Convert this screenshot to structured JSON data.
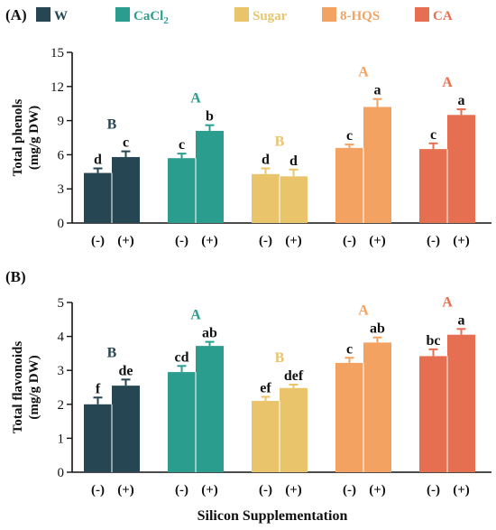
{
  "figure": {
    "legend": [
      {
        "name": "W",
        "color": "#264653"
      },
      {
        "name": "CaCl",
        "sub": "2",
        "color": "#2A9D8F"
      },
      {
        "name": "Sugar",
        "color": "#E9C46A"
      },
      {
        "name": "8-HQS",
        "color": "#F4A261"
      },
      {
        "name": "CA",
        "color": "#E76F51"
      }
    ],
    "xlabel": "Silicon Supplementation"
  },
  "chart_data": [
    {
      "type": "bar",
      "panel_label": "(A)",
      "ylabel": "Total phenols",
      "ylabel_unit": "(mg/g DW)",
      "ylim": [
        0,
        15
      ],
      "yticks": [
        "0",
        "3",
        "6",
        "9",
        "12",
        "15"
      ],
      "grid": false,
      "legend_position": "top",
      "treatments": [
        "W",
        "CaCl2",
        "Sugar",
        "8-HQS",
        "CA"
      ],
      "categories": [
        "(-)",
        "(+)"
      ],
      "values": [
        [
          4.4,
          5.8
        ],
        [
          5.7,
          8.1
        ],
        [
          4.3,
          4.1
        ],
        [
          6.6,
          10.2
        ],
        [
          6.5,
          9.5
        ]
      ],
      "errors": [
        [
          0.4,
          0.5
        ],
        [
          0.4,
          0.5
        ],
        [
          0.5,
          0.6
        ],
        [
          0.3,
          0.7
        ],
        [
          0.5,
          0.5
        ]
      ],
      "letters": [
        [
          "d",
          "c"
        ],
        [
          "c",
          "b"
        ],
        [
          "d",
          "d"
        ],
        [
          "c",
          "a"
        ],
        [
          "c",
          "a"
        ]
      ],
      "group_letters": [
        "B",
        "A",
        "B",
        "A",
        "A"
      ]
    },
    {
      "type": "bar",
      "panel_label": "(B)",
      "ylabel": "Total flavonoids",
      "ylabel_unit": "(mg/g DW)",
      "ylim": [
        0,
        5
      ],
      "yticks": [
        "0",
        "1",
        "2",
        "3",
        "4",
        "5"
      ],
      "grid": false,
      "legend_position": "top",
      "treatments": [
        "W",
        "CaCl2",
        "Sugar",
        "8-HQS",
        "CA"
      ],
      "categories": [
        "(-)",
        "(+)"
      ],
      "values": [
        [
          2.0,
          2.55
        ],
        [
          2.95,
          3.72
        ],
        [
          2.1,
          2.48
        ],
        [
          3.22,
          3.82
        ],
        [
          3.42,
          4.05
        ]
      ],
      "errors": [
        [
          0.2,
          0.18
        ],
        [
          0.18,
          0.12
        ],
        [
          0.12,
          0.1
        ],
        [
          0.15,
          0.15
        ],
        [
          0.2,
          0.17
        ]
      ],
      "letters": [
        [
          "f",
          "de"
        ],
        [
          "cd",
          "ab"
        ],
        [
          "ef",
          "def"
        ],
        [
          "c",
          "ab"
        ],
        [
          "bc",
          "a"
        ]
      ],
      "group_letters": [
        "B",
        "A",
        "B",
        "A",
        "A"
      ]
    }
  ]
}
